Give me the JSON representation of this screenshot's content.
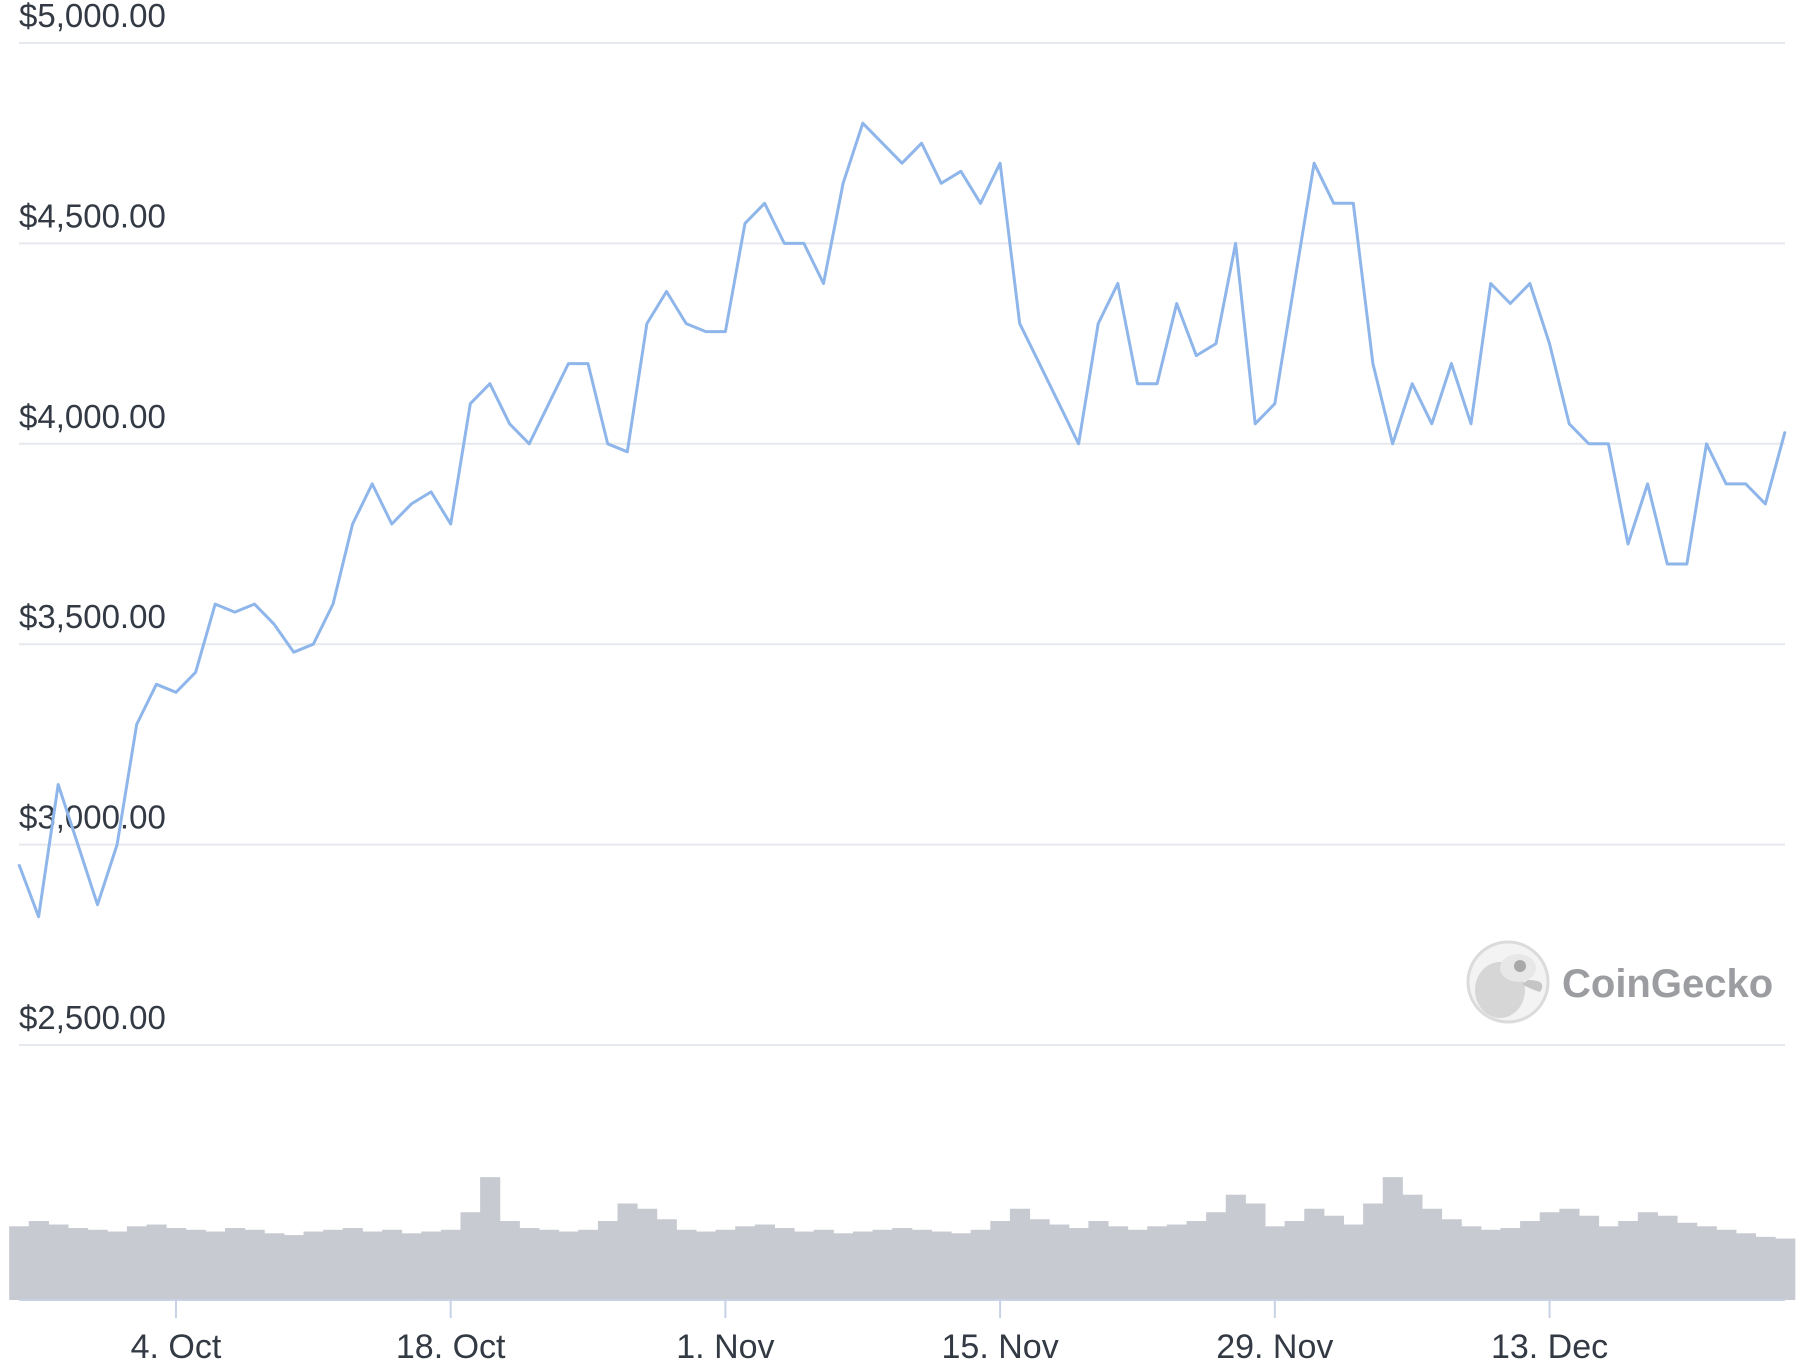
{
  "brand": {
    "name": "CoinGecko",
    "logo_icon": "gecko-logo-icon"
  },
  "colors": {
    "price_line": "#8fb6ea",
    "volume": "#c7cad1",
    "grid": "#e6e9ee",
    "axis": "#c8d2e6",
    "label": "#333a44"
  },
  "chart_data": {
    "type": "line",
    "title": "",
    "xlabel": "",
    "ylabel": "",
    "ylim": [
      2500,
      5000
    ],
    "y_ticks": [
      5000,
      4500,
      4000,
      3500,
      3000,
      2500
    ],
    "y_tick_labels": [
      "$5,000.00",
      "$4,500.00",
      "$4,000.00",
      "$3,500.00",
      "$3,000.00",
      "$2,500.00"
    ],
    "x_ticks": [
      "2021-10-04",
      "2021-10-18",
      "2021-11-01",
      "2021-11-15",
      "2021-11-29",
      "2021-12-13"
    ],
    "x_tick_labels": [
      "4. Oct",
      "18. Oct",
      "1. Nov",
      "15. Nov",
      "29. Nov",
      "13. Dec"
    ],
    "xlim": [
      "2021-09-26",
      "2021-12-25"
    ],
    "grid": true,
    "legend": "none",
    "series": [
      {
        "x": [
          "2021-09-26",
          "2021-09-27",
          "2021-09-28",
          "2021-09-29",
          "2021-09-30",
          "2021-10-01",
          "2021-10-02",
          "2021-10-03",
          "2021-10-04",
          "2021-10-05",
          "2021-10-06",
          "2021-10-07",
          "2021-10-08",
          "2021-10-09",
          "2021-10-10",
          "2021-10-11",
          "2021-10-12",
          "2021-10-13",
          "2021-10-14",
          "2021-10-15",
          "2021-10-16",
          "2021-10-17",
          "2021-10-18",
          "2021-10-19",
          "2021-10-20",
          "2021-10-21",
          "2021-10-22",
          "2021-10-23",
          "2021-10-24",
          "2021-10-25",
          "2021-10-26",
          "2021-10-27",
          "2021-10-28",
          "2021-10-29",
          "2021-10-30",
          "2021-10-31",
          "2021-11-01",
          "2021-11-02",
          "2021-11-03",
          "2021-11-04",
          "2021-11-05",
          "2021-11-06",
          "2021-11-07",
          "2021-11-08",
          "2021-11-09",
          "2021-11-10",
          "2021-11-11",
          "2021-11-12",
          "2021-11-13",
          "2021-11-14",
          "2021-11-15",
          "2021-11-16",
          "2021-11-17",
          "2021-11-18",
          "2021-11-19",
          "2021-11-20",
          "2021-11-21",
          "2021-11-22",
          "2021-11-23",
          "2021-11-24",
          "2021-11-25",
          "2021-11-26",
          "2021-11-27",
          "2021-11-28",
          "2021-11-29",
          "2021-11-30",
          "2021-12-01",
          "2021-12-02",
          "2021-12-03",
          "2021-12-04",
          "2021-12-05",
          "2021-12-06",
          "2021-12-07",
          "2021-12-08",
          "2021-12-09",
          "2021-12-10",
          "2021-12-11",
          "2021-12-12",
          "2021-12-13",
          "2021-12-14",
          "2021-12-15",
          "2021-12-16",
          "2021-12-17",
          "2021-12-18",
          "2021-12-19",
          "2021-12-20",
          "2021-12-21",
          "2021-12-22",
          "2021-12-23",
          "2021-12-24",
          "2021-12-25"
        ],
        "values": [
          2950,
          2820,
          3150,
          3000,
          2850,
          3000,
          3300,
          3400,
          3380,
          3430,
          3600,
          3580,
          3600,
          3550,
          3480,
          3500,
          3600,
          3800,
          3900,
          3800,
          3850,
          3880,
          3800,
          4100,
          4150,
          4050,
          4000,
          4100,
          4200,
          4200,
          4000,
          3980,
          4300,
          4380,
          4300,
          4280,
          4280,
          4550,
          4600,
          4500,
          4500,
          4400,
          4650,
          4800,
          4750,
          4700,
          4750,
          4650,
          4680,
          4600,
          4700,
          4300,
          4200,
          4100,
          4000,
          4300,
          4400,
          4150,
          4150,
          4350,
          4220,
          4250,
          4500,
          4050,
          4100,
          4400,
          4700,
          4600,
          4600,
          4200,
          4000,
          4150,
          4050,
          4200,
          4050,
          4400,
          4350,
          4400,
          4250,
          4050,
          4000,
          4000,
          3750,
          3900,
          3700,
          3700,
          4000,
          3900,
          3900,
          3850,
          4030
        ],
        "volume": [
          0.42,
          0.45,
          0.43,
          0.41,
          0.4,
          0.39,
          0.42,
          0.43,
          0.41,
          0.4,
          0.39,
          0.41,
          0.4,
          0.38,
          0.37,
          0.39,
          0.4,
          0.41,
          0.39,
          0.4,
          0.38,
          0.39,
          0.4,
          0.5,
          0.7,
          0.45,
          0.41,
          0.4,
          0.39,
          0.4,
          0.45,
          0.55,
          0.52,
          0.46,
          0.4,
          0.39,
          0.4,
          0.42,
          0.43,
          0.41,
          0.39,
          0.4,
          0.38,
          0.39,
          0.4,
          0.41,
          0.4,
          0.39,
          0.38,
          0.4,
          0.45,
          0.52,
          0.46,
          0.43,
          0.41,
          0.45,
          0.42,
          0.4,
          0.42,
          0.43,
          0.45,
          0.5,
          0.6,
          0.55,
          0.42,
          0.45,
          0.52,
          0.48,
          0.43,
          0.55,
          0.7,
          0.6,
          0.52,
          0.46,
          0.42,
          0.4,
          0.41,
          0.45,
          0.5,
          0.52,
          0.48,
          0.42,
          0.45,
          0.5,
          0.48,
          0.44,
          0.42,
          0.4,
          0.38,
          0.36,
          0.35
        ]
      }
    ]
  }
}
